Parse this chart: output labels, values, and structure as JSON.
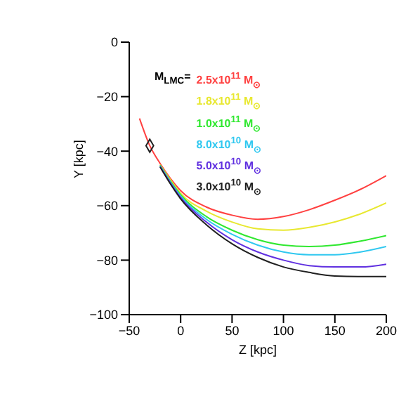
{
  "chart_data": {
    "type": "line",
    "xlabel": "Z [kpc]",
    "ylabel": "Y [kpc]",
    "legend_title": "M$_{LMC}$=",
    "legend": "top",
    "grid": false,
    "marker": "none",
    "line_style": "solid",
    "xlim": [
      -50,
      200
    ],
    "xticks": [
      -50,
      0,
      50,
      100,
      150,
      200
    ],
    "ylim": [
      -100,
      0
    ],
    "yticks": [
      -100,
      -80,
      -60,
      -40,
      -20,
      0
    ],
    "x": [
      -40,
      -30,
      -20,
      -10,
      0,
      25,
      50,
      75,
      100,
      125,
      150,
      175,
      200
    ],
    "series": [
      {
        "name": "2.5x10$^{11}$ M$_{⊙}$",
        "color": "#ff4040",
        "values": [
          -28,
          -38,
          -44.5,
          -50,
          -54.5,
          -60.5,
          -63.5,
          -65,
          -64,
          -61.5,
          -58,
          -54,
          -49
        ]
      },
      {
        "name": "1.8x10$^{11}$ M$_{⊙}$",
        "color": "#e8e830",
        "values": [
          null,
          null,
          -45,
          -50.5,
          -55.5,
          -62,
          -66,
          -68.5,
          -69,
          -68,
          -66,
          -63,
          -59
        ]
      },
      {
        "name": "1.0x10$^{11}$ M$_{⊙}$",
        "color": "#30e830",
        "values": [
          null,
          null,
          -45.2,
          -51,
          -56,
          -64,
          -69,
          -72.5,
          -74.5,
          -75,
          -74.5,
          -73,
          -71
        ]
      },
      {
        "name": "8.0x10$^{10}$ M$_{⊙}$",
        "color": "#30c8f0",
        "values": [
          null,
          null,
          -45.4,
          -51.3,
          -56.5,
          -65,
          -70.5,
          -74.5,
          -77,
          -78,
          -78,
          -77,
          -75
        ]
      },
      {
        "name": "5.0x10$^{10}$ M$_{⊙}$",
        "color": "#6030e0",
        "values": [
          null,
          null,
          -45.6,
          -51.6,
          -57,
          -66,
          -72.5,
          -77,
          -80,
          -82,
          -82.5,
          -82.5,
          -81.5
        ]
      },
      {
        "name": "3.0x10$^{10}$ M$_{⊙}$",
        "color": "#202020",
        "values": [
          null,
          null,
          -45.8,
          -52,
          -57.5,
          -67,
          -74,
          -79,
          -82.5,
          -84.5,
          -85.8,
          -86,
          -86
        ]
      },
      {
        "type": "scatter",
        "marker": "diamond",
        "color": "#202020",
        "x": [
          -30
        ],
        "values": [
          -38
        ]
      }
    ]
  }
}
